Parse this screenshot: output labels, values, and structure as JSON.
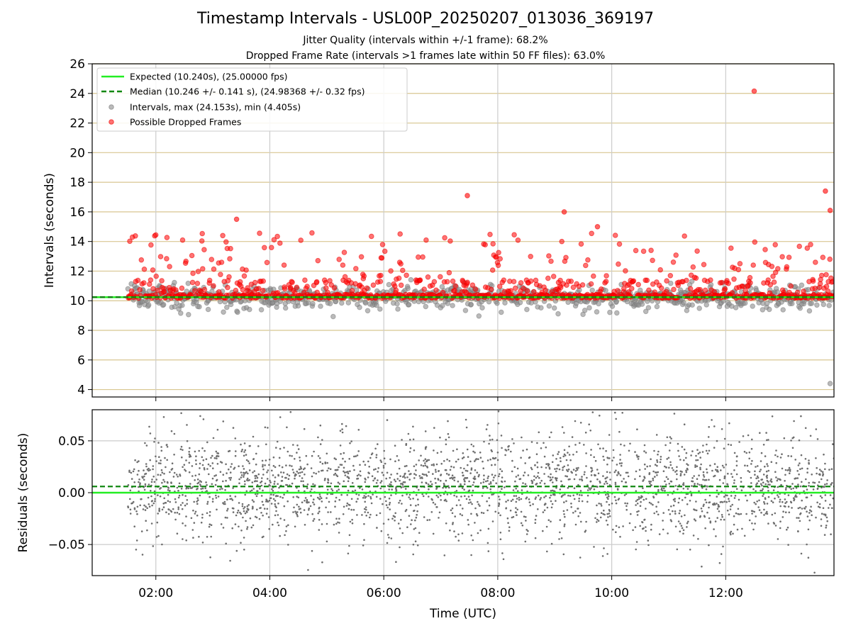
{
  "title": "Timestamp Intervals - USL00P_20250207_013036_369197",
  "subtitle_1": "Jitter Quality (intervals within +/-1 frame): 68.2%",
  "subtitle_2": "Dropped Frame Rate (intervals >1 frames late within 50 FF files): 63.0%",
  "colors": {
    "expected": "#22ee22",
    "median": "#118811",
    "intervals": "#8c8c8c",
    "dropped": "#ff0000",
    "grid_upper": "#d8c690",
    "grid_lower": "#cccccc",
    "residual_points": "#6e6e6e"
  },
  "chart_data": [
    {
      "type": "scatter",
      "ylabel": "Intervals (seconds)",
      "xlabel": "",
      "x_ticks": [
        "02:00",
        "04:00",
        "06:00",
        "08:00",
        "10:00",
        "12:00"
      ],
      "y_ticks": [
        "4",
        "6",
        "8",
        "10",
        "12",
        "14",
        "16",
        "18",
        "20",
        "22",
        "24",
        "26"
      ],
      "ylim": [
        3.5,
        26
      ],
      "xlim_hours": [
        0.883,
        13.9
      ],
      "data_start_hours": 1.51,
      "grid": "horizontal and vertical",
      "legend_position": "upper-left",
      "legend": [
        "Expected (10.240s), (25.00000 fps)",
        "Median (10.246 +/- 0.141 s), (24.98368 +/- 0.32 fps)",
        "Intervals, max (24.153s), min (4.405s)",
        "Possible Dropped Frames"
      ],
      "expected_interval": 10.24,
      "median_interval": 10.246,
      "interval_max": 24.153,
      "interval_min": 4.405,
      "notable_points": [
        {
          "x": "03:25",
          "y": 15.5
        },
        {
          "x": "07:28",
          "y": 17.1
        },
        {
          "x": "09:10",
          "y": 16.0
        },
        {
          "x": "09:45",
          "y": 15.0
        },
        {
          "x": "12:30",
          "y": 24.153
        },
        {
          "x": "13:45",
          "y": 17.4
        },
        {
          "x": "13:50",
          "y": 16.1
        },
        {
          "x": "13:50",
          "y": 4.405
        }
      ]
    },
    {
      "type": "scatter",
      "ylabel": "Residuals (seconds)",
      "xlabel": "Time (UTC)",
      "x_ticks": [
        "02:00",
        "04:00",
        "06:00",
        "08:00",
        "10:00",
        "12:00"
      ],
      "y_ticks": [
        "−0.05",
        "0.00",
        "0.05"
      ],
      "ylim": [
        -0.08,
        0.08
      ],
      "expected_residual": 0.0,
      "median_residual": 0.006,
      "grid": "horizontal and vertical"
    }
  ]
}
